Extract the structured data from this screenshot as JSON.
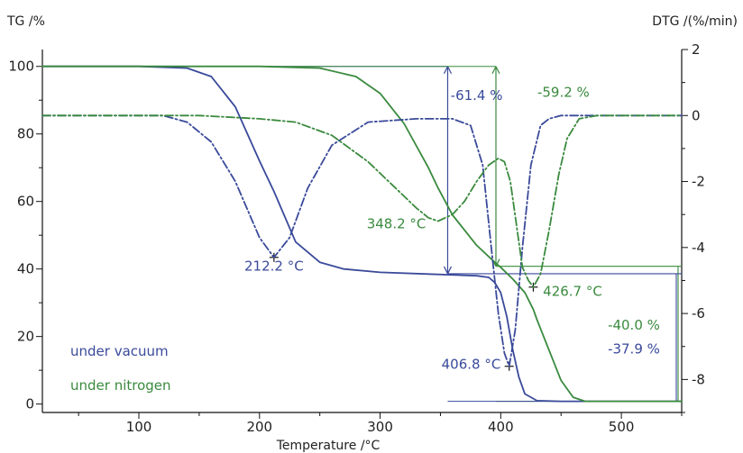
{
  "chart_data": {
    "type": "line",
    "xlabel": "Temperature /°C",
    "ylabel_left": "TG /%",
    "ylabel_right": "DTG /(%/min)",
    "xlim": [
      20,
      550
    ],
    "ylim_left": [
      -2.5,
      105
    ],
    "ylim_right": [
      -9.0,
      2.0
    ],
    "x_ticks": [
      100,
      200,
      300,
      400,
      500
    ],
    "y_ticks_left": [
      0,
      20,
      40,
      60,
      80,
      100
    ],
    "y_ticks_right": [
      2,
      0,
      -2,
      -4,
      -6,
      -8
    ],
    "colors": {
      "vacuum": "#3a4a9a",
      "nitrogen": "#3a8a3e",
      "axis": "#111111"
    },
    "legend": [
      {
        "label": "under vacuum",
        "color": "#3a4a9a"
      },
      {
        "label": "under nitrogen",
        "color": "#3a8a3e"
      }
    ],
    "series": [
      {
        "color": "#3a4a9a",
        "style": "solid",
        "axis": "left",
        "x": [
          20,
          100,
          140,
          160,
          180,
          200,
          212,
          230,
          250,
          270,
          300,
          340,
          380,
          390,
          395,
          400,
          405,
          410,
          415,
          420,
          430,
          450,
          500,
          550
        ],
        "y": [
          100,
          100,
          99.5,
          97,
          88,
          72,
          63,
          48,
          42,
          40,
          39,
          38.5,
          38,
          37.5,
          36,
          33,
          26,
          16,
          8,
          3,
          1,
          0.8,
          0.8,
          0.8
        ]
      },
      {
        "color": "#3a8a3e",
        "style": "solid",
        "axis": "left",
        "x": [
          20,
          150,
          200,
          250,
          280,
          300,
          320,
          340,
          348,
          360,
          380,
          395,
          400,
          410,
          420,
          427,
          430,
          440,
          450,
          460,
          470,
          550
        ],
        "y": [
          100,
          100,
          100,
          99.5,
          97,
          92,
          83,
          70,
          64,
          56,
          47,
          42,
          40.5,
          37,
          33,
          28,
          25,
          16,
          7,
          2,
          0.8,
          0.8
        ]
      },
      {
        "color": "#3a4a9a",
        "style": "dashdot",
        "axis": "right",
        "x": [
          20,
          120,
          140,
          160,
          180,
          200,
          212,
          225,
          240,
          260,
          290,
          330,
          360,
          375,
          385,
          393,
          398,
          403,
          407,
          412,
          418,
          425,
          433,
          440,
          450,
          470,
          500,
          550
        ],
        "y": [
          0,
          0,
          -0.2,
          -0.8,
          -2.0,
          -3.7,
          -4.3,
          -3.7,
          -2.2,
          -0.9,
          -0.2,
          -0.1,
          -0.1,
          -0.3,
          -1.5,
          -4.3,
          -6.0,
          -7.2,
          -7.6,
          -6.5,
          -4.0,
          -1.5,
          -0.3,
          -0.1,
          0,
          0,
          0,
          0
        ]
      },
      {
        "color": "#3a8a3e",
        "style": "dashdot",
        "axis": "right",
        "x": [
          20,
          150,
          200,
          230,
          260,
          290,
          310,
          330,
          340,
          348,
          360,
          370,
          380,
          390,
          398,
          403,
          408,
          413,
          418,
          423,
          427,
          433,
          440,
          448,
          455,
          465,
          480,
          550
        ],
        "y": [
          0,
          0,
          -0.1,
          -0.2,
          -0.6,
          -1.4,
          -2.1,
          -2.8,
          -3.1,
          -3.2,
          -3.0,
          -2.6,
          -2.0,
          -1.5,
          -1.3,
          -1.4,
          -2.0,
          -3.3,
          -4.6,
          -5.0,
          -5.2,
          -4.8,
          -3.5,
          -1.8,
          -0.7,
          -0.1,
          0,
          0
        ]
      }
    ],
    "annotations": [
      {
        "text": "-61.4 %",
        "color": "#3a4a9a",
        "x": 380,
        "y_left": 90,
        "anchor": "middle"
      },
      {
        "text": "-59.2 %",
        "color": "#3a8a3e",
        "x": 452,
        "y_left": 91,
        "anchor": "middle"
      },
      {
        "text": "212.2 °C",
        "color": "#3a4a9a",
        "x": 212,
        "y_left": 39.5,
        "anchor": "middle"
      },
      {
        "text": "348.2 °C",
        "color": "#3a8a3e",
        "x": 338,
        "y_left": 52,
        "anchor": "end"
      },
      {
        "text": "426.7 °C",
        "color": "#3a8a3e",
        "x": 435,
        "y_left": 32,
        "anchor": "start"
      },
      {
        "text": "-40.0 %",
        "color": "#3a8a3e",
        "x": 532,
        "y_left": 22,
        "anchor": "end"
      },
      {
        "text": "-37.9 %",
        "color": "#3a4a9a",
        "x": 532,
        "y_left": 15,
        "anchor": "end"
      },
      {
        "text": "406.8 °C",
        "color": "#3a4a9a",
        "x": 400,
        "y_left": 10.5,
        "anchor": "end"
      }
    ],
    "step_markers": [
      {
        "color": "#3a4a9a",
        "x": 356,
        "y_top": 100,
        "y_bottom": 38.6,
        "right_to": 356
      },
      {
        "color": "#3a8a3e",
        "x": 396,
        "y_top": 100,
        "y_bottom": 40.8,
        "right_to": 396
      }
    ],
    "residue_markers": [
      {
        "color": "#3a8a3e",
        "y_from": 40.8,
        "y_to": 0.8,
        "x_from": 396
      },
      {
        "color": "#3a4a9a",
        "y_from": 38.6,
        "y_to": 0.8,
        "x_from": 356
      }
    ],
    "peak_markers": [
      {
        "color": "#3a4a9a",
        "x": 212,
        "y_right": -4.3
      },
      {
        "color": "#3a4a9a",
        "x": 407,
        "y_right": -7.6
      },
      {
        "color": "#3a8a3e",
        "x": 427,
        "y_right": -5.2
      }
    ]
  }
}
